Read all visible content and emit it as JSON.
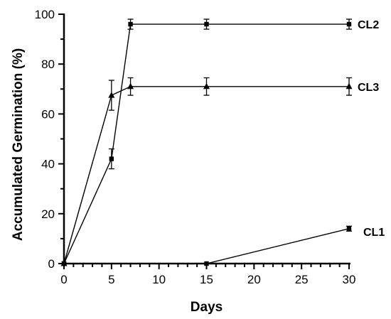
{
  "chart_data": {
    "type": "line",
    "xlabel": "Days",
    "ylabel": "Accumulated Germination (%)",
    "xlim": [
      0,
      30
    ],
    "ylim": [
      0,
      100
    ],
    "x_ticks": [
      "0",
      "5",
      "10",
      "15",
      "20",
      "25",
      "30"
    ],
    "y_ticks": [
      "0",
      "20",
      "40",
      "60",
      "80",
      "100"
    ],
    "grid": false,
    "legend": "labels at line ends (right)",
    "series": [
      {
        "name": "CL2",
        "marker": "square",
        "x": [
          0,
          5,
          7,
          15,
          30
        ],
        "y": [
          0,
          42,
          96,
          96,
          96
        ],
        "err": [
          0,
          4,
          2,
          2,
          2
        ]
      },
      {
        "name": "CL3",
        "marker": "triangle",
        "x": [
          0,
          5,
          7,
          15,
          30
        ],
        "y": [
          0,
          67.5,
          71,
          71,
          71
        ],
        "err": [
          0,
          6,
          3.5,
          3.5,
          3.5
        ]
      },
      {
        "name": "CL1",
        "marker": "square",
        "x": [
          0,
          15,
          30
        ],
        "y": [
          0,
          0,
          14
        ],
        "err": [
          0,
          0,
          1
        ]
      }
    ]
  }
}
